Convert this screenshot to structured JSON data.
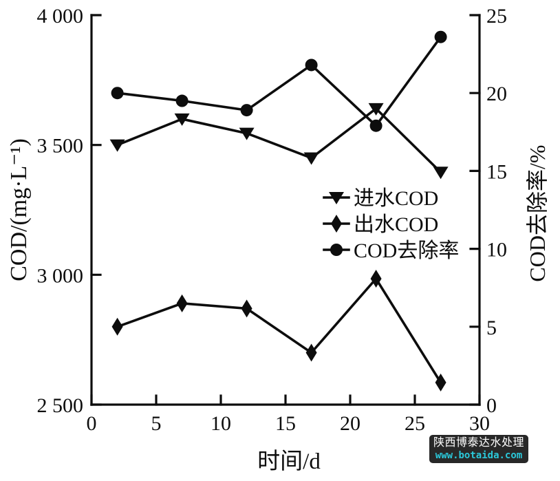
{
  "chart_data": {
    "type": "line",
    "title": "",
    "xlabel": "时间/d",
    "ylabel_left": "COD/(mg·L⁻¹)",
    "ylabel_right": "COD去除率/%",
    "grid": false,
    "line_color": "#0d0d0d",
    "x": [
      2,
      7,
      12,
      17,
      22,
      27
    ],
    "xlim": [
      0,
      30
    ],
    "x_ticks": {
      "values": [
        0,
        5,
        10,
        15,
        20,
        25,
        30
      ],
      "labels": [
        "0",
        "5",
        "10",
        "15",
        "20",
        "25",
        "30"
      ]
    },
    "ylim_left": [
      2500,
      4000
    ],
    "y_ticks_left": {
      "values": [
        2500,
        3000,
        3500,
        4000
      ],
      "labels": [
        "2 500",
        "3 000",
        "3 500",
        "4 000"
      ]
    },
    "ylim_right": [
      0,
      25
    ],
    "y_ticks_right": {
      "values": [
        0,
        5,
        10,
        15,
        20,
        25
      ],
      "labels": [
        "0",
        "5",
        "10",
        "15",
        "20",
        "25"
      ]
    },
    "series": [
      {
        "name": "进水COD",
        "axis": "left",
        "marker": "triangle-down",
        "values": [
          3500,
          3600,
          3545,
          3450,
          3640,
          3395
        ]
      },
      {
        "name": "出水COD",
        "axis": "left",
        "marker": "diamond",
        "values": [
          2800,
          2890,
          2870,
          2700,
          2985,
          2585
        ]
      },
      {
        "name": "COD去除率",
        "axis": "right",
        "marker": "circle",
        "values": [
          20.0,
          19.5,
          18.9,
          21.8,
          17.9,
          23.6
        ]
      }
    ],
    "legend": {
      "position": "inside-center-right",
      "entries": [
        "进水COD",
        "出水COD",
        "COD去除率"
      ]
    }
  },
  "watermark": {
    "line1": "陕西博泰达水处理",
    "line2": "www.botaida.com",
    "bg_color": "#282828",
    "line1_color": "#ffffff",
    "line2_color": "#2bc8da"
  }
}
